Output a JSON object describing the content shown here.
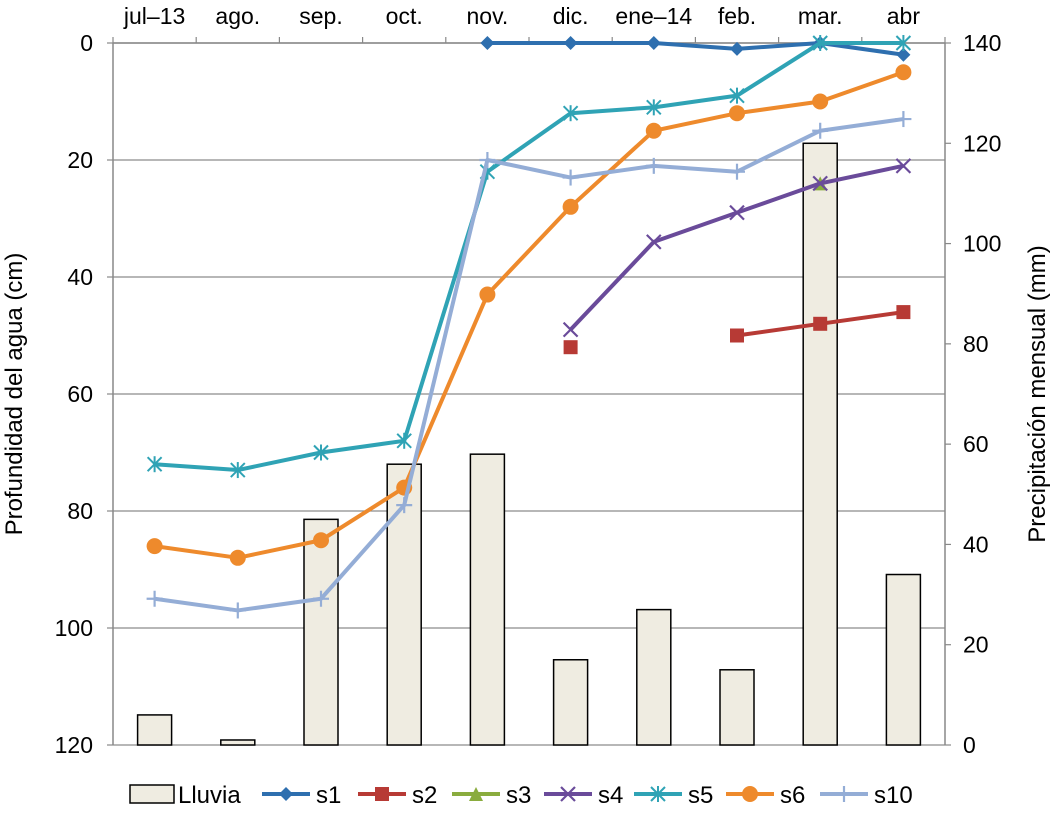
{
  "chart_data": {
    "type": "bar+line",
    "categories": [
      "jul–13",
      "ago.",
      "sep.",
      "oct.",
      "nov.",
      "dic.",
      "ene–14",
      "feb.",
      "mar.",
      "abr"
    ],
    "y_left": {
      "label": "Profundidad del agua (cm)",
      "range": [
        0,
        120
      ],
      "inverted": true,
      "ticks": [
        "0",
        "20",
        "40",
        "60",
        "80",
        "100",
        "120"
      ]
    },
    "y_right": {
      "label": "Precipitación mensual (mm)",
      "range": [
        0,
        140
      ],
      "ticks": [
        "0",
        "20",
        "40",
        "60",
        "80",
        "100",
        "120",
        "140"
      ]
    },
    "grid": true,
    "legend_position": "bottom",
    "bars": {
      "name": "Lluvia",
      "axis": "right",
      "color": "#efece1",
      "values": [
        6,
        1,
        45,
        56,
        58,
        17,
        27,
        15,
        120,
        34
      ]
    },
    "series": [
      {
        "name": "s1",
        "axis": "left",
        "color": "#2e6faf",
        "marker": "diamond",
        "values": [
          null,
          null,
          null,
          null,
          0,
          0,
          0,
          1,
          0,
          2
        ]
      },
      {
        "name": "s2",
        "axis": "left",
        "color": "#b73a35",
        "marker": "square",
        "values": [
          null,
          null,
          null,
          null,
          null,
          52,
          null,
          50,
          48,
          46
        ]
      },
      {
        "name": "s3",
        "axis": "left",
        "color": "#8aac3e",
        "marker": "triangle",
        "values": [
          null,
          null,
          null,
          null,
          null,
          null,
          null,
          null,
          24,
          null
        ]
      },
      {
        "name": "s4",
        "axis": "left",
        "color": "#6a4b9a",
        "marker": "x",
        "values": [
          null,
          null,
          null,
          null,
          null,
          49,
          34,
          29,
          24,
          21
        ]
      },
      {
        "name": "s5",
        "axis": "left",
        "color": "#2fa3b5",
        "marker": "asterisk",
        "values": [
          72,
          73,
          70,
          68,
          22,
          12,
          11,
          9,
          0,
          0
        ]
      },
      {
        "name": "s6",
        "axis": "left",
        "color": "#ee8a2c",
        "marker": "circle",
        "values": [
          86,
          88,
          85,
          76,
          43,
          28,
          15,
          12,
          10,
          5
        ]
      },
      {
        "name": "s10",
        "axis": "left",
        "color": "#94add6",
        "marker": "plus",
        "values": [
          95,
          97,
          95,
          79,
          20,
          23,
          21,
          22,
          15,
          13
        ]
      }
    ]
  }
}
